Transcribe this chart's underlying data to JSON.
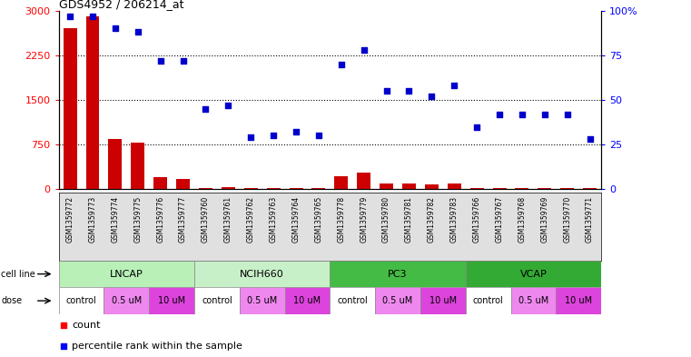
{
  "title": "GDS4952 / 206214_at",
  "samples": [
    "GSM1359772",
    "GSM1359773",
    "GSM1359774",
    "GSM1359775",
    "GSM1359776",
    "GSM1359777",
    "GSM1359760",
    "GSM1359761",
    "GSM1359762",
    "GSM1359763",
    "GSM1359764",
    "GSM1359765",
    "GSM1359778",
    "GSM1359779",
    "GSM1359780",
    "GSM1359781",
    "GSM1359782",
    "GSM1359783",
    "GSM1359766",
    "GSM1359767",
    "GSM1359768",
    "GSM1359769",
    "GSM1359770",
    "GSM1359771"
  ],
  "counts": [
    2700,
    2900,
    850,
    780,
    200,
    180,
    20,
    30,
    15,
    18,
    20,
    18,
    220,
    280,
    100,
    100,
    80,
    100,
    15,
    15,
    20,
    15,
    18,
    20
  ],
  "percentiles": [
    97,
    97,
    90,
    88,
    72,
    72,
    45,
    47,
    29,
    30,
    32,
    30,
    70,
    78,
    55,
    55,
    52,
    58,
    35,
    42,
    42,
    42,
    42,
    28
  ],
  "cell_lines": [
    {
      "label": "LNCAP",
      "start": 0,
      "end": 6,
      "color": "#b8f0b8"
    },
    {
      "label": "NCIH660",
      "start": 6,
      "end": 12,
      "color": "#c8f0c8"
    },
    {
      "label": "PC3",
      "start": 12,
      "end": 18,
      "color": "#44bb44"
    },
    {
      "label": "VCAP",
      "start": 18,
      "end": 24,
      "color": "#33aa33"
    }
  ],
  "doses": [
    {
      "label": "control",
      "start": 0,
      "end": 2
    },
    {
      "label": "0.5 uM",
      "start": 2,
      "end": 4
    },
    {
      "label": "10 uM",
      "start": 4,
      "end": 6
    },
    {
      "label": "control",
      "start": 6,
      "end": 8
    },
    {
      "label": "0.5 uM",
      "start": 8,
      "end": 10
    },
    {
      "label": "10 uM",
      "start": 10,
      "end": 12
    },
    {
      "label": "control",
      "start": 12,
      "end": 14
    },
    {
      "label": "0.5 uM",
      "start": 14,
      "end": 16
    },
    {
      "label": "10 uM",
      "start": 16,
      "end": 18
    },
    {
      "label": "control",
      "start": 18,
      "end": 20
    },
    {
      "label": "0.5 uM",
      "start": 20,
      "end": 22
    },
    {
      "label": "10 uM",
      "start": 22,
      "end": 24
    }
  ],
  "dose_colors": {
    "control": "#ffffff",
    "0.5 uM": "#ee88ee",
    "10 uM": "#dd44dd"
  },
  "bar_color": "#cc0000",
  "scatter_color": "#0000cc",
  "ylim_left": [
    0,
    3000
  ],
  "ylim_right": [
    0,
    100
  ],
  "yticks_left": [
    0,
    750,
    1500,
    2250,
    3000
  ],
  "yticks_right": [
    0,
    25,
    50,
    75,
    100
  ],
  "left_label_color": "red",
  "right_label_color": "blue"
}
